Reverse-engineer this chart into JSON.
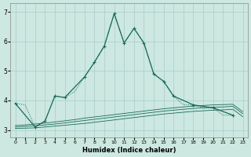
{
  "xlabel": "Humidex (Indice chaleur)",
  "background_color": "#cce8e0",
  "grid_color": "#aacccc",
  "line_color": "#1a6b5a",
  "xlim": [
    -0.5,
    23.5
  ],
  "ylim": [
    2.75,
    7.3
  ],
  "yticks": [
    3,
    4,
    5,
    6,
    7
  ],
  "xticks": [
    0,
    1,
    2,
    3,
    4,
    5,
    6,
    7,
    8,
    9,
    10,
    11,
    12,
    13,
    14,
    15,
    16,
    17,
    18,
    19,
    20,
    21,
    22,
    23
  ],
  "dotted_line": {
    "x": [
      0,
      1,
      2,
      3,
      4,
      5,
      6,
      7,
      8,
      9,
      10,
      11,
      12,
      13,
      14,
      15,
      16,
      17,
      18,
      19,
      20,
      21,
      22
    ],
    "y": [
      3.9,
      3.85,
      3.1,
      3.3,
      4.15,
      4.1,
      4.3,
      4.8,
      5.3,
      5.85,
      6.95,
      5.95,
      6.45,
      5.95,
      4.9,
      4.65,
      4.15,
      3.85,
      3.85,
      3.75,
      3.75,
      3.5,
      3.5
    ]
  },
  "solid_marker_line": {
    "x": [
      0,
      2,
      3,
      4,
      5,
      7,
      8,
      9,
      10,
      11,
      12,
      13,
      14,
      15,
      16,
      18,
      20,
      22
    ],
    "y": [
      3.9,
      3.1,
      3.3,
      4.15,
      4.1,
      4.8,
      5.3,
      5.85,
      6.95,
      5.95,
      6.45,
      5.95,
      4.9,
      4.65,
      4.15,
      3.85,
      3.75,
      3.5
    ]
  },
  "flat_lines": [
    {
      "x": [
        0,
        1,
        2,
        3,
        4,
        5,
        6,
        7,
        8,
        9,
        10,
        11,
        12,
        13,
        14,
        15,
        16,
        17,
        18,
        19,
        20,
        21,
        22,
        23
      ],
      "y": [
        3.05,
        3.06,
        3.07,
        3.1,
        3.13,
        3.16,
        3.19,
        3.22,
        3.26,
        3.3,
        3.34,
        3.38,
        3.42,
        3.46,
        3.5,
        3.54,
        3.57,
        3.6,
        3.63,
        3.65,
        3.67,
        3.68,
        3.7,
        3.45
      ]
    },
    {
      "x": [
        0,
        1,
        2,
        3,
        4,
        5,
        6,
        7,
        8,
        9,
        10,
        11,
        12,
        13,
        14,
        15,
        16,
        17,
        18,
        19,
        20,
        21,
        22,
        23
      ],
      "y": [
        3.1,
        3.12,
        3.14,
        3.17,
        3.2,
        3.24,
        3.28,
        3.32,
        3.36,
        3.4,
        3.44,
        3.48,
        3.52,
        3.56,
        3.6,
        3.64,
        3.67,
        3.7,
        3.73,
        3.75,
        3.77,
        3.78,
        3.8,
        3.55
      ]
    },
    {
      "x": [
        0,
        1,
        2,
        3,
        4,
        5,
        6,
        7,
        8,
        9,
        10,
        11,
        12,
        13,
        14,
        15,
        16,
        17,
        18,
        19,
        20,
        21,
        22,
        23
      ],
      "y": [
        3.15,
        3.17,
        3.2,
        3.23,
        3.27,
        3.31,
        3.35,
        3.4,
        3.44,
        3.48,
        3.52,
        3.56,
        3.6,
        3.64,
        3.68,
        3.72,
        3.75,
        3.78,
        3.81,
        3.83,
        3.85,
        3.86,
        3.87,
        3.62
      ]
    }
  ]
}
